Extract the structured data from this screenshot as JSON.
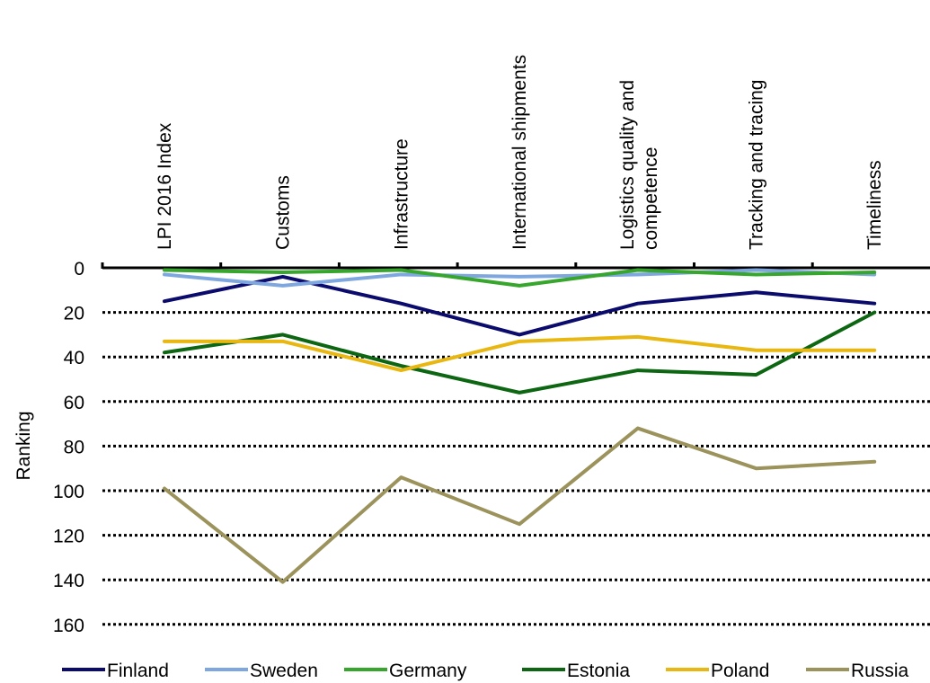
{
  "chart_data": {
    "type": "line",
    "title": "",
    "xlabel": "",
    "ylabel": "Ranking",
    "y_reversed": true,
    "ylim": [
      0,
      160
    ],
    "y_ticks": [
      0,
      20,
      40,
      60,
      80,
      100,
      120,
      140,
      160
    ],
    "x_axis_position": "top",
    "grid": "horizontal dotted",
    "legend_position": "bottom",
    "categories": [
      "LPI 2016 Index",
      "Customs",
      "Infrastructure",
      "International shipments",
      "Logistics quality and competence",
      "Tracking and tracing",
      "Timeliness"
    ],
    "series": [
      {
        "name": "Finland",
        "color": "#0b0b6e",
        "values": [
          15,
          4,
          16,
          30,
          16,
          11,
          16
        ]
      },
      {
        "name": "Sweden",
        "color": "#7fa7df",
        "values": [
          3,
          8,
          3,
          4,
          3,
          1,
          3
        ]
      },
      {
        "name": "Germany",
        "color": "#36a62c",
        "values": [
          1,
          2,
          1,
          8,
          1,
          3,
          2
        ]
      },
      {
        "name": "Estonia",
        "color": "#0d6612",
        "values": [
          38,
          30,
          44,
          56,
          46,
          48,
          20
        ]
      },
      {
        "name": "Poland",
        "color": "#e8b711",
        "values": [
          33,
          33,
          46,
          33,
          31,
          37,
          37
        ]
      },
      {
        "name": "Russia",
        "color": "#9b925c",
        "values": [
          99,
          141,
          94,
          115,
          72,
          90,
          87
        ]
      }
    ]
  }
}
